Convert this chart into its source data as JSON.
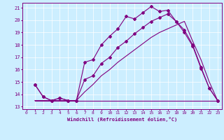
{
  "bg_color": "#cceeff",
  "line_color": "#800080",
  "xlim": [
    -0.5,
    23.5
  ],
  "ylim": [
    12.8,
    21.4
  ],
  "yticks": [
    13,
    14,
    15,
    16,
    17,
    18,
    19,
    20,
    21
  ],
  "xticks": [
    0,
    1,
    2,
    3,
    4,
    5,
    6,
    7,
    8,
    9,
    10,
    11,
    12,
    13,
    14,
    15,
    16,
    17,
    18,
    19,
    20,
    21,
    22,
    23
  ],
  "xlabel": "Windchill (Refroidissement éolien,°C)",
  "line1_x": [
    1,
    2,
    3,
    4,
    5,
    6,
    7,
    8,
    9,
    10,
    11,
    12,
    13,
    14,
    15,
    16,
    17,
    18,
    19,
    20,
    21,
    22,
    23
  ],
  "line1_y": [
    14.8,
    13.8,
    13.5,
    13.7,
    13.5,
    13.5,
    16.6,
    16.8,
    18.0,
    18.7,
    19.3,
    20.3,
    20.1,
    20.6,
    21.1,
    20.7,
    20.8,
    19.9,
    19.0,
    17.9,
    16.1,
    14.5,
    13.5
  ],
  "line2_x": [
    1,
    2,
    3,
    4,
    5,
    6,
    7,
    8,
    9,
    10,
    11,
    12,
    13,
    14,
    15,
    16,
    17,
    18,
    19,
    20,
    21,
    22,
    23
  ],
  "line2_y": [
    14.8,
    13.8,
    13.5,
    13.7,
    13.5,
    13.5,
    15.2,
    15.5,
    16.5,
    17.0,
    17.8,
    18.3,
    18.9,
    19.4,
    19.9,
    20.2,
    20.5,
    19.9,
    19.2,
    18.0,
    16.2,
    14.5,
    13.5
  ],
  "line3_x": [
    1,
    23
  ],
  "line3_y": [
    13.5,
    13.5
  ],
  "line4_x": [
    1,
    2,
    3,
    4,
    5,
    6,
    7,
    8,
    9,
    10,
    11,
    12,
    13,
    14,
    15,
    16,
    17,
    18,
    19,
    20,
    21,
    22,
    23
  ],
  "line4_y": [
    13.5,
    13.5,
    13.5,
    13.5,
    13.5,
    13.5,
    14.2,
    14.8,
    15.5,
    16.0,
    16.6,
    17.1,
    17.6,
    18.1,
    18.6,
    19.0,
    19.3,
    19.6,
    19.9,
    18.3,
    16.8,
    15.0,
    13.5
  ]
}
